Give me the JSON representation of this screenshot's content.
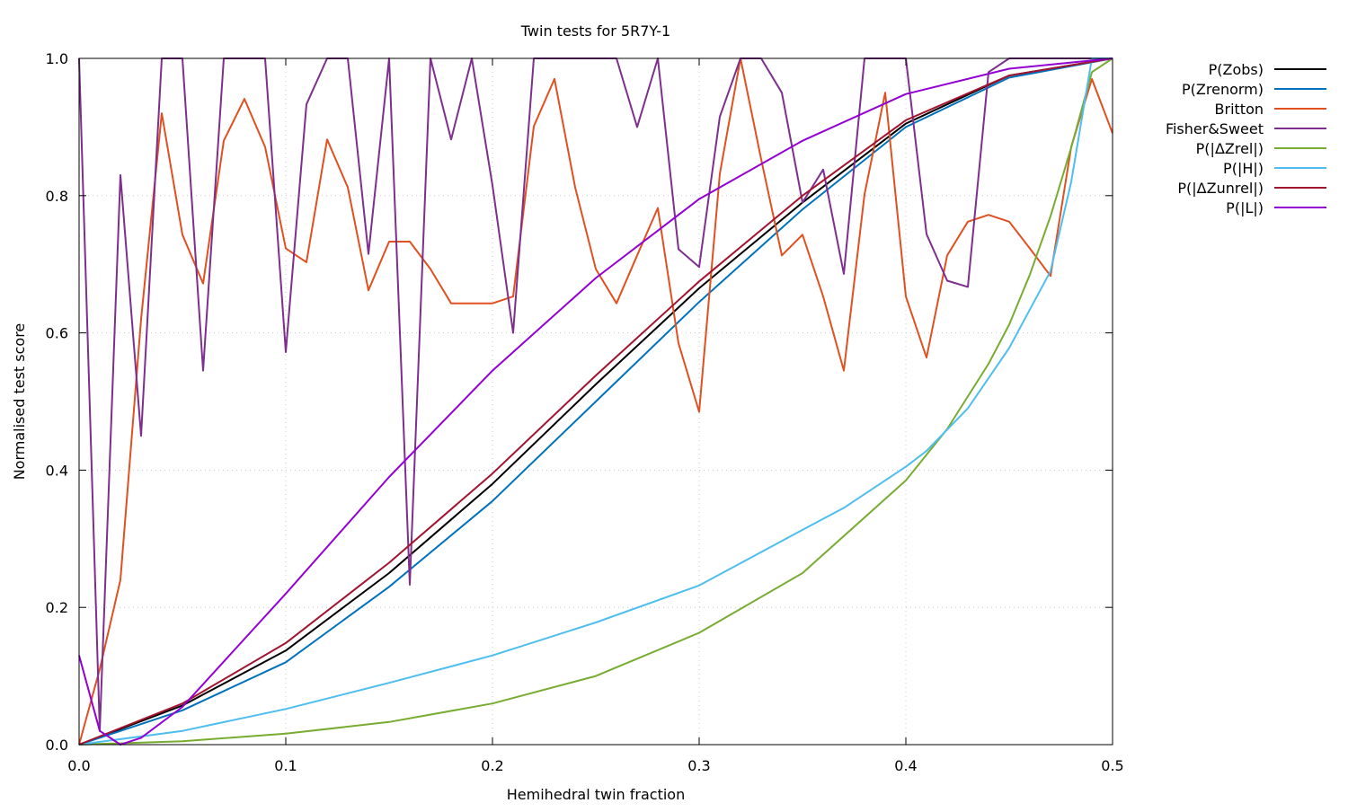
{
  "chart_data": {
    "type": "line",
    "title": "Twin tests for 5R7Y-1",
    "xlabel": "Hemihedral twin fraction",
    "ylabel": "Normalised test score",
    "xlim": [
      0,
      0.5
    ],
    "ylim": [
      0,
      1
    ],
    "xticks": [
      "0.0",
      "0.1",
      "0.2",
      "0.3",
      "0.4",
      "0.5"
    ],
    "yticks": [
      "0.0",
      "0.2",
      "0.4",
      "0.6",
      "0.8",
      "1.0"
    ],
    "grid": true,
    "legend_position": "outside-top-right",
    "series": [
      {
        "name": "P(Zobs)",
        "color": "#000000",
        "x": [
          0,
          0.05,
          0.1,
          0.15,
          0.2,
          0.25,
          0.3,
          0.35,
          0.4,
          0.45,
          0.5
        ],
        "y": [
          0,
          0.057,
          0.137,
          0.25,
          0.38,
          0.525,
          0.665,
          0.79,
          0.905,
          0.975,
          1.0
        ]
      },
      {
        "name": "P(Zrenorm)",
        "color": "#0072bd",
        "x": [
          0,
          0.05,
          0.1,
          0.15,
          0.2,
          0.25,
          0.3,
          0.35,
          0.4,
          0.45,
          0.5
        ],
        "y": [
          0,
          0.05,
          0.12,
          0.23,
          0.355,
          0.5,
          0.645,
          0.78,
          0.9,
          0.972,
          1.0
        ]
      },
      {
        "name": "Britton",
        "color": "#e05020",
        "x": [
          0,
          0.01,
          0.02,
          0.03,
          0.04,
          0.05,
          0.06,
          0.07,
          0.08,
          0.09,
          0.1,
          0.11,
          0.12,
          0.13,
          0.14,
          0.15,
          0.16,
          0.17,
          0.18,
          0.19,
          0.2,
          0.21,
          0.22,
          0.23,
          0.24,
          0.25,
          0.26,
          0.27,
          0.28,
          0.29,
          0.3,
          0.31,
          0.32,
          0.33,
          0.34,
          0.35,
          0.36,
          0.37,
          0.38,
          0.39,
          0.4,
          0.41,
          0.42,
          0.43,
          0.44,
          0.45,
          0.46,
          0.47,
          0.48,
          0.49,
          0.5
        ],
        "y": [
          0,
          0.11,
          0.24,
          0.62,
          0.92,
          0.743,
          0.672,
          0.88,
          0.941,
          0.871,
          0.723,
          0.703,
          0.882,
          0.812,
          0.662,
          0.733,
          0.733,
          0.693,
          0.643,
          0.643,
          0.643,
          0.653,
          0.901,
          0.97,
          0.812,
          0.693,
          0.643,
          0.713,
          0.782,
          0.585,
          0.485,
          0.832,
          1.0,
          0.853,
          0.713,
          0.743,
          0.653,
          0.545,
          0.802,
          0.95,
          0.653,
          0.564,
          0.713,
          0.762,
          0.772,
          0.762,
          0.723,
          0.683,
          0.871,
          0.97,
          0.891
        ]
      },
      {
        "name": "Fisher&Sweet",
        "color": "#7e2f8e",
        "x": [
          0,
          0.01,
          0.02,
          0.03,
          0.04,
          0.05,
          0.06,
          0.07,
          0.08,
          0.09,
          0.1,
          0.11,
          0.12,
          0.13,
          0.14,
          0.15,
          0.16,
          0.17,
          0.18,
          0.19,
          0.2,
          0.21,
          0.22,
          0.23,
          0.24,
          0.25,
          0.26,
          0.27,
          0.28,
          0.29,
          0.3,
          0.31,
          0.32,
          0.33,
          0.34,
          0.35,
          0.36,
          0.37,
          0.38,
          0.39,
          0.4,
          0.41,
          0.42,
          0.43,
          0.44,
          0.45,
          0.46,
          0.47,
          0.48,
          0.49,
          0.5
        ],
        "y": [
          1.0,
          0.02,
          0.83,
          0.45,
          1.0,
          1.0,
          0.545,
          1.0,
          1.0,
          1.0,
          0.572,
          0.933,
          1.0,
          1.0,
          0.715,
          1.0,
          0.233,
          1.0,
          0.882,
          1.0,
          0.815,
          0.6,
          1.0,
          1.0,
          1.0,
          1.0,
          1.0,
          0.9,
          1.0,
          0.722,
          0.696,
          0.915,
          1.0,
          1.0,
          0.95,
          0.79,
          0.838,
          0.686,
          1.0,
          1.0,
          1.0,
          0.744,
          0.676,
          0.667,
          0.98,
          1.0,
          1.0,
          1.0,
          1.0,
          1.0,
          1.0
        ]
      },
      {
        "name": "P(|ΔZrel|)",
        "color": "#77ac30",
        "x": [
          0,
          0.05,
          0.1,
          0.15,
          0.2,
          0.25,
          0.3,
          0.35,
          0.4,
          0.42,
          0.44,
          0.45,
          0.46,
          0.47,
          0.48,
          0.49,
          0.5
        ],
        "y": [
          0,
          0.005,
          0.016,
          0.033,
          0.06,
          0.1,
          0.163,
          0.25,
          0.385,
          0.46,
          0.555,
          0.612,
          0.685,
          0.77,
          0.87,
          0.98,
          1.0
        ]
      },
      {
        "name": "P(|H|)",
        "color": "#4dbeee",
        "x": [
          0,
          0.05,
          0.1,
          0.15,
          0.2,
          0.25,
          0.3,
          0.35,
          0.37,
          0.4,
          0.41,
          0.43,
          0.45,
          0.47,
          0.48,
          0.49,
          0.5
        ],
        "y": [
          0,
          0.02,
          0.052,
          0.09,
          0.13,
          0.178,
          0.232,
          0.313,
          0.345,
          0.405,
          0.428,
          0.49,
          0.578,
          0.69,
          0.82,
          1.0,
          1.0
        ]
      },
      {
        "name": "P(|ΔZunrel|)",
        "color": "#a2142f",
        "x": [
          0,
          0.05,
          0.1,
          0.15,
          0.2,
          0.25,
          0.3,
          0.35,
          0.4,
          0.45,
          0.5
        ],
        "y": [
          0,
          0.06,
          0.148,
          0.265,
          0.395,
          0.538,
          0.675,
          0.8,
          0.91,
          0.975,
          1.0
        ]
      },
      {
        "name": "P(|L|)",
        "color": "#9400d3",
        "x": [
          0,
          0.01,
          0.02,
          0.03,
          0.05,
          0.1,
          0.15,
          0.2,
          0.25,
          0.3,
          0.35,
          0.4,
          0.45,
          0.5
        ],
        "y": [
          0.13,
          0.02,
          0.0,
          0.01,
          0.055,
          0.22,
          0.39,
          0.545,
          0.68,
          0.795,
          0.88,
          0.948,
          0.985,
          1.0
        ]
      }
    ]
  }
}
